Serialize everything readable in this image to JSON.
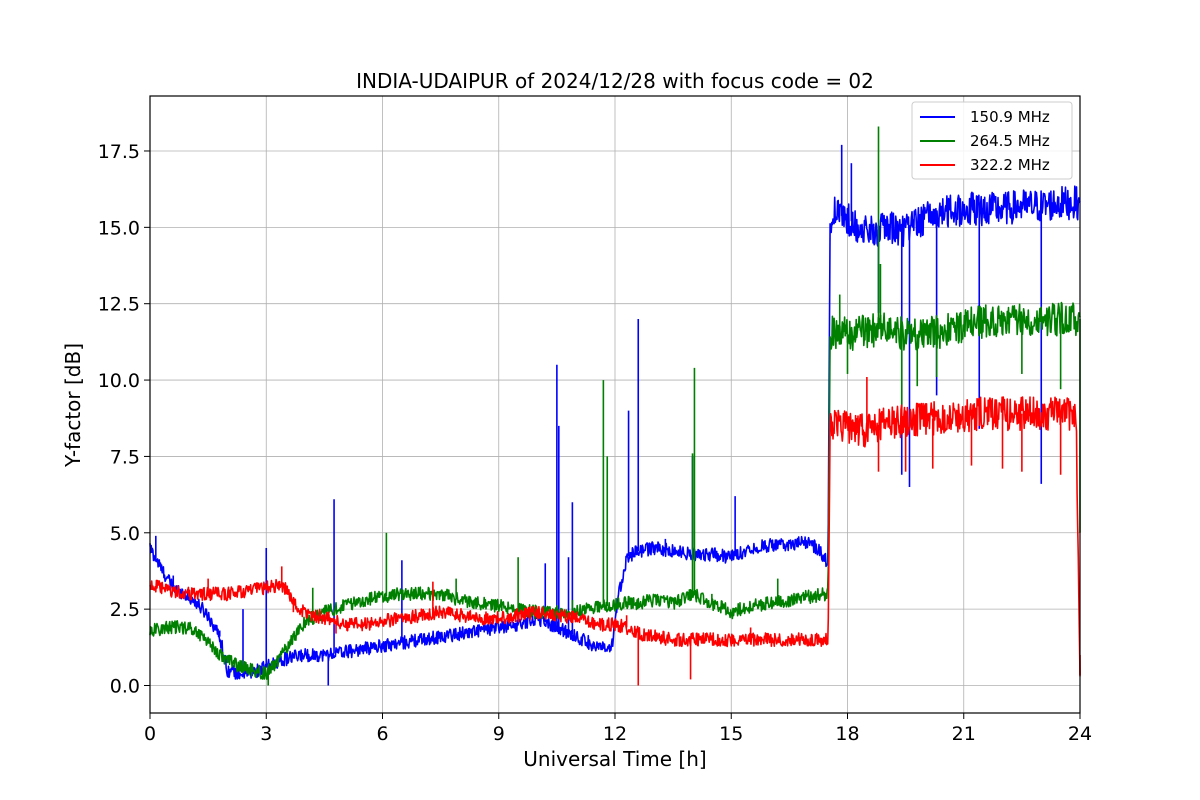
{
  "chart_data": {
    "type": "line",
    "title": "INDIA-UDAIPUR of 2024/12/28 with focus code = 02",
    "xlabel": "Universal Time [h]",
    "ylabel": "Y-factor [dB]",
    "xlim": [
      0,
      24
    ],
    "ylim": [
      -0.9,
      19.3
    ],
    "x_ticks": [
      0,
      3,
      6,
      9,
      12,
      15,
      18,
      21,
      24
    ],
    "x_tick_labels": [
      "0",
      "3",
      "6",
      "9",
      "12",
      "15",
      "18",
      "21",
      "24"
    ],
    "y_ticks": [
      0.0,
      2.5,
      5.0,
      7.5,
      10.0,
      12.5,
      15.0,
      17.5
    ],
    "y_tick_labels": [
      "0.0",
      "2.5",
      "5.0",
      "7.5",
      "10.0",
      "12.5",
      "15.0",
      "17.5"
    ],
    "grid": true,
    "legend_position": "top-right",
    "series": [
      {
        "name": "150.9 MHz",
        "color": "#0000ff",
        "x": [
          0,
          0.3,
          0.6,
          0.9,
          1.2,
          1.5,
          1.8,
          2.0,
          2.3,
          2.6,
          3.0,
          3.3,
          3.6,
          4.0,
          4.5,
          5.0,
          5.5,
          6.0,
          6.5,
          7.0,
          7.5,
          8.0,
          8.5,
          9.0,
          9.5,
          10.0,
          10.5,
          11.0,
          11.5,
          11.9,
          12.1,
          12.3,
          12.6,
          13.0,
          13.5,
          14.0,
          14.5,
          15.0,
          15.5,
          16.0,
          16.5,
          17.0,
          17.3,
          17.5,
          17.55,
          17.6,
          18.0,
          18.5,
          19.0,
          19.5,
          20.0,
          20.5,
          21.0,
          21.5,
          22.0,
          22.5,
          23.0,
          23.5,
          24.0
        ],
        "y": [
          4.5,
          3.8,
          3.2,
          3.0,
          2.7,
          2.3,
          1.6,
          0.5,
          0.4,
          0.4,
          0.6,
          0.8,
          0.9,
          1.0,
          1.0,
          1.1,
          1.2,
          1.3,
          1.4,
          1.5,
          1.6,
          1.7,
          1.8,
          1.9,
          2.0,
          2.2,
          1.9,
          1.6,
          1.3,
          1.1,
          3.0,
          4.2,
          4.4,
          4.5,
          4.4,
          4.3,
          4.3,
          4.2,
          4.5,
          4.6,
          4.6,
          4.7,
          4.4,
          4.0,
          15.2,
          15.5,
          15.3,
          14.8,
          15.0,
          14.9,
          15.3,
          15.5,
          15.6,
          15.6,
          15.6,
          15.7,
          15.7,
          15.8,
          15.8
        ],
        "spikes": [
          [
            0.15,
            4.9
          ],
          [
            0.6,
            3.6
          ],
          [
            1.8,
            1.8
          ],
          [
            2.4,
            2.5
          ],
          [
            3.0,
            4.5
          ],
          [
            4.6,
            0.0
          ],
          [
            4.75,
            6.1
          ],
          [
            6.5,
            4.1
          ],
          [
            9.7,
            2.2
          ],
          [
            10.2,
            4.0
          ],
          [
            10.5,
            10.5
          ],
          [
            10.55,
            8.5
          ],
          [
            10.8,
            4.2
          ],
          [
            10.9,
            6.0
          ],
          [
            12.35,
            9.0
          ],
          [
            12.6,
            12.0
          ],
          [
            13.3,
            4.8
          ],
          [
            14.0,
            7.5
          ],
          [
            15.1,
            6.2
          ],
          [
            17.85,
            17.7
          ],
          [
            18.1,
            17.1
          ],
          [
            18.8,
            12.2
          ],
          [
            19.4,
            6.9
          ],
          [
            19.6,
            6.5
          ],
          [
            20.3,
            9.5
          ],
          [
            21.4,
            8.4
          ],
          [
            23.0,
            6.6
          ],
          [
            23.45,
            16.0
          ]
        ]
      },
      {
        "name": "264.5 MHz",
        "color": "#008000",
        "x": [
          0,
          0.5,
          1.0,
          1.4,
          1.8,
          2.2,
          2.6,
          3.0,
          3.3,
          3.6,
          4.0,
          4.5,
          5.0,
          5.5,
          6.0,
          6.5,
          7.0,
          7.5,
          8.0,
          8.5,
          9.0,
          9.5,
          10.0,
          10.5,
          11.0,
          11.5,
          11.9,
          12.2,
          12.6,
          13.0,
          13.5,
          14.0,
          14.5,
          15.0,
          15.5,
          16.0,
          16.5,
          17.0,
          17.5,
          17.55,
          17.6,
          18.0,
          18.5,
          19.0,
          19.5,
          20.0,
          20.5,
          21.0,
          21.5,
          22.0,
          22.5,
          23.0,
          23.5,
          24.0
        ],
        "y": [
          1.8,
          1.9,
          1.9,
          1.6,
          1.0,
          0.7,
          0.5,
          0.4,
          0.8,
          1.4,
          2.1,
          2.4,
          2.6,
          2.8,
          2.9,
          3.0,
          3.0,
          3.0,
          2.8,
          2.7,
          2.6,
          2.5,
          2.4,
          2.4,
          2.4,
          2.6,
          2.6,
          2.7,
          2.7,
          2.8,
          2.7,
          3.0,
          2.7,
          2.4,
          2.6,
          2.7,
          2.8,
          2.9,
          3.0,
          11.5,
          11.6,
          11.5,
          11.6,
          11.7,
          11.5,
          11.5,
          11.6,
          11.8,
          11.9,
          12.0,
          12.0,
          12.0,
          12.0,
          12.0
        ],
        "spikes": [
          [
            3.0,
            0.3
          ],
          [
            3.05,
            0.0
          ],
          [
            4.2,
            3.2
          ],
          [
            6.1,
            5.0
          ],
          [
            7.9,
            3.5
          ],
          [
            9.5,
            4.2
          ],
          [
            10.9,
            2.8
          ],
          [
            11.7,
            10.0
          ],
          [
            11.8,
            7.5
          ],
          [
            14.0,
            7.6
          ],
          [
            14.05,
            10.4
          ],
          [
            14.5,
            3.0
          ],
          [
            16.2,
            3.5
          ],
          [
            17.8,
            12.8
          ],
          [
            18.0,
            10.2
          ],
          [
            18.8,
            18.3
          ],
          [
            18.85,
            13.8
          ],
          [
            19.4,
            8.3
          ],
          [
            19.8,
            9.8
          ],
          [
            20.3,
            10.1
          ],
          [
            22.5,
            10.2
          ],
          [
            23.5,
            9.7
          ],
          [
            24.0,
            5.0
          ]
        ]
      },
      {
        "name": "322.2 MHz",
        "color": "#ff0000",
        "x": [
          0,
          0.5,
          1.0,
          1.5,
          2.0,
          2.5,
          3.0,
          3.4,
          3.6,
          3.8,
          4.2,
          4.6,
          5.0,
          5.5,
          6.0,
          6.5,
          7.0,
          7.5,
          8.0,
          8.5,
          9.0,
          9.5,
          10.0,
          10.5,
          11.0,
          11.5,
          12.0,
          12.3,
          12.6,
          13.0,
          13.5,
          14.0,
          14.5,
          15.0,
          15.5,
          16.0,
          16.5,
          17.0,
          17.5,
          17.55,
          17.6,
          18.0,
          18.5,
          19.0,
          19.5,
          20.0,
          20.5,
          21.0,
          21.5,
          22.0,
          22.5,
          23.0,
          23.5,
          23.9,
          24.0
        ],
        "y": [
          3.3,
          3.1,
          3.0,
          3.0,
          3.0,
          3.1,
          3.2,
          3.3,
          3.0,
          2.5,
          2.3,
          2.2,
          2.0,
          2.0,
          2.1,
          2.2,
          2.3,
          2.4,
          2.3,
          2.2,
          2.2,
          2.3,
          2.4,
          2.3,
          2.2,
          2.0,
          2.0,
          1.9,
          1.7,
          1.6,
          1.5,
          1.5,
          1.5,
          1.5,
          1.5,
          1.5,
          1.5,
          1.5,
          1.5,
          8.5,
          8.6,
          8.5,
          8.3,
          8.6,
          8.7,
          8.7,
          8.8,
          8.8,
          8.9,
          8.9,
          8.9,
          8.9,
          8.9,
          8.9,
          0.3
        ],
        "spikes": [
          [
            1.5,
            3.5
          ],
          [
            3.4,
            3.9
          ],
          [
            3.7,
            2.4
          ],
          [
            4.8,
            1.7
          ],
          [
            7.3,
            3.4
          ],
          [
            12.3,
            2.3
          ],
          [
            12.6,
            0.0
          ],
          [
            13.95,
            0.2
          ],
          [
            15.5,
            1.9
          ],
          [
            18.5,
            10.1
          ],
          [
            18.8,
            7.0
          ],
          [
            19.5,
            7.0
          ],
          [
            20.2,
            7.1
          ],
          [
            21.2,
            7.2
          ],
          [
            22.0,
            7.1
          ],
          [
            22.5,
            7.0
          ],
          [
            23.5,
            6.9
          ],
          [
            24.0,
            1.0
          ]
        ]
      }
    ]
  }
}
